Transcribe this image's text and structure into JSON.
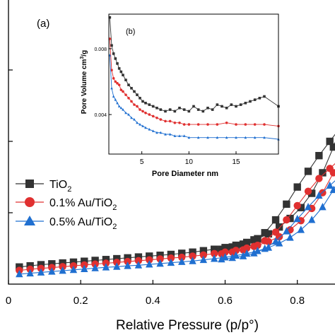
{
  "chart_data": [
    {
      "id": "main",
      "panel_label": "(a)",
      "type": "scatter",
      "xlabel": "Relative Pressure (p/p°)",
      "ylabel": "",
      "xlim": [
        0,
        0.92
      ],
      "ylim": [
        0,
        1.0
      ],
      "xticks": [
        0,
        0.2,
        0.4,
        0.6,
        0.8
      ],
      "xtick_labels": [
        "0",
        "0.2",
        "0.4",
        "0.6",
        "0.8"
      ],
      "yticks": [
        0.25,
        0.5,
        0.75
      ],
      "grid": false,
      "legend": {
        "placement": "middle-left",
        "entries": [
          {
            "main": "TiO",
            "sub": "2"
          },
          {
            "main": "0.1% Au/TiO",
            "sub": "2"
          },
          {
            "main": "0.5% Au/TiO",
            "sub": "2"
          }
        ]
      },
      "series": [
        {
          "name": "TiO2",
          "marker": "square",
          "color": "#333333",
          "adsorption": {
            "x": [
              0.03,
              0.06,
              0.09,
              0.12,
              0.15,
              0.18,
              0.21,
              0.24,
              0.27,
              0.3,
              0.33,
              0.36,
              0.39,
              0.42,
              0.45,
              0.48,
              0.51,
              0.54,
              0.57,
              0.6,
              0.63,
              0.66,
              0.69,
              0.72,
              0.75,
              0.78,
              0.81,
              0.84,
              0.87,
              0.9,
              0.92
            ],
            "y": [
              0.06,
              0.064,
              0.068,
              0.071,
              0.074,
              0.077,
              0.08,
              0.083,
              0.086,
              0.089,
              0.092,
              0.095,
              0.098,
              0.101,
              0.104,
              0.108,
              0.112,
              0.117,
              0.122,
              0.128,
              0.136,
              0.146,
              0.159,
              0.176,
              0.2,
              0.23,
              0.268,
              0.318,
              0.39,
              0.48,
              0.55
            ]
          },
          "desorption": {
            "x": [
              0.92,
              0.89,
              0.86,
              0.83,
              0.8,
              0.77,
              0.74,
              0.71,
              0.68,
              0.65,
              0.62,
              0.59
            ],
            "y": [
              0.55,
              0.5,
              0.45,
              0.395,
              0.34,
              0.28,
              0.225,
              0.18,
              0.155,
              0.14,
              0.13,
              0.122
            ]
          }
        },
        {
          "name": "0.1% Au/TiO2",
          "marker": "circle",
          "color": "#e03030",
          "adsorption": {
            "x": [
              0.03,
              0.06,
              0.09,
              0.12,
              0.15,
              0.18,
              0.21,
              0.24,
              0.27,
              0.3,
              0.33,
              0.36,
              0.39,
              0.42,
              0.45,
              0.48,
              0.51,
              0.54,
              0.57,
              0.6,
              0.63,
              0.66,
              0.69,
              0.72,
              0.75,
              0.78,
              0.81,
              0.84,
              0.87,
              0.9,
              0.92
            ],
            "y": [
              0.048,
              0.052,
              0.055,
              0.058,
              0.061,
              0.064,
              0.067,
              0.07,
              0.073,
              0.076,
              0.079,
              0.082,
              0.085,
              0.088,
              0.091,
              0.094,
              0.098,
              0.102,
              0.107,
              0.112,
              0.118,
              0.126,
              0.136,
              0.149,
              0.166,
              0.19,
              0.222,
              0.265,
              0.32,
              0.39,
              0.44
            ]
          },
          "desorption": {
            "x": [
              0.92,
              0.89,
              0.86,
              0.83,
              0.8,
              0.77,
              0.74,
              0.71,
              0.68,
              0.65,
              0.62,
              0.59
            ],
            "y": [
              0.44,
              0.405,
              0.37,
              0.325,
              0.275,
              0.225,
              0.182,
              0.152,
              0.132,
              0.12,
              0.112,
              0.106
            ]
          }
        },
        {
          "name": "0.5% Au/TiO2",
          "marker": "triangle",
          "color": "#1f6fd0",
          "adsorption": {
            "x": [
              0.03,
              0.06,
              0.09,
              0.12,
              0.15,
              0.18,
              0.21,
              0.24,
              0.27,
              0.3,
              0.33,
              0.36,
              0.39,
              0.42,
              0.45,
              0.48,
              0.51,
              0.54,
              0.57,
              0.6,
              0.63,
              0.66,
              0.69,
              0.72,
              0.75,
              0.78,
              0.81,
              0.84,
              0.87,
              0.9,
              0.92
            ],
            "y": [
              0.035,
              0.038,
              0.041,
              0.044,
              0.047,
              0.05,
              0.053,
              0.056,
              0.059,
              0.061,
              0.064,
              0.066,
              0.069,
              0.072,
              0.075,
              0.078,
              0.081,
              0.085,
              0.089,
              0.094,
              0.1,
              0.107,
              0.116,
              0.128,
              0.143,
              0.163,
              0.19,
              0.225,
              0.27,
              0.33,
              0.38
            ]
          },
          "desorption": {
            "x": [
              0.92,
              0.89,
              0.86,
              0.83,
              0.8,
              0.77,
              0.74,
              0.71,
              0.68,
              0.65,
              0.62,
              0.59
            ],
            "y": [
              0.38,
              0.345,
              0.31,
              0.27,
              0.228,
              0.185,
              0.15,
              0.124,
              0.108,
              0.098,
              0.092,
              0.087
            ]
          }
        }
      ]
    },
    {
      "id": "inset",
      "panel_label": "(b)",
      "type": "line",
      "xlabel": "Pore Diameter nm",
      "ylabel": {
        "main": "Pore Volume cm",
        "sup": "3",
        "tail": "/g"
      },
      "xlim": [
        1.5,
        19.5
      ],
      "ylim": [
        0.0016,
        0.0101
      ],
      "xticks": [
        5,
        10,
        15
      ],
      "xtick_labels": [
        "5",
        "10",
        "15"
      ],
      "yticks": [
        0.004,
        0.008
      ],
      "ytick_labels": [
        "0.004",
        "0.008"
      ],
      "grid": false,
      "series": [
        {
          "name": "TiO2",
          "marker": "square",
          "color": "#333333",
          "x": [
            1.6,
            1.8,
            2.0,
            2.2,
            2.4,
            2.6,
            2.8,
            3.0,
            3.3,
            3.6,
            3.9,
            4.2,
            4.5,
            4.8,
            5.1,
            5.4,
            5.8,
            6.2,
            6.6,
            7.0,
            7.5,
            8.0,
            8.5,
            9.0,
            9.5,
            10.0,
            10.5,
            11.0,
            11.5,
            12.0,
            12.5,
            13.0,
            13.5,
            14.0,
            14.5,
            15.0,
            15.5,
            16.0,
            16.5,
            17.0,
            17.5,
            18.0,
            19.5
          ],
          "y": [
            0.0099,
            0.0082,
            0.0077,
            0.0074,
            0.0071,
            0.0068,
            0.0066,
            0.0064,
            0.0061,
            0.0058,
            0.0056,
            0.0054,
            0.0052,
            0.005,
            0.0048,
            0.0047,
            0.0046,
            0.0045,
            0.0044,
            0.0043,
            0.0042,
            0.0043,
            0.0042,
            0.0044,
            0.0043,
            0.0042,
            0.0045,
            0.0043,
            0.0042,
            0.0044,
            0.0043,
            0.0046,
            0.0045,
            0.0044,
            0.0046,
            0.0045,
            0.0046,
            0.0047,
            0.0048,
            0.0049,
            0.005,
            0.0051,
            0.0045
          ]
        },
        {
          "name": "0.1% Au/TiO2",
          "marker": "circle",
          "color": "#e03030",
          "x": [
            1.6,
            1.8,
            2.0,
            2.2,
            2.4,
            2.6,
            2.8,
            3.0,
            3.3,
            3.6,
            3.9,
            4.2,
            4.5,
            4.8,
            5.1,
            5.4,
            5.8,
            6.2,
            6.6,
            7.0,
            7.5,
            8.0,
            8.5,
            9.0,
            9.5,
            10.0,
            11.0,
            12.0,
            13.0,
            14.0,
            15.0,
            16.0,
            17.0,
            18.0,
            19.5
          ],
          "y": [
            0.0086,
            0.0067,
            0.0062,
            0.006,
            0.0059,
            0.0058,
            0.0055,
            0.0054,
            0.0052,
            0.005,
            0.0048,
            0.0046,
            0.0045,
            0.0043,
            0.0042,
            0.0041,
            0.004,
            0.0039,
            0.0038,
            0.0037,
            0.0036,
            0.0036,
            0.0035,
            0.0035,
            0.0034,
            0.0034,
            0.0034,
            0.0034,
            0.0034,
            0.0035,
            0.0034,
            0.0034,
            0.0034,
            0.0034,
            0.0033
          ]
        },
        {
          "name": "0.5% Au/TiO2",
          "marker": "triangle",
          "color": "#1f6fd0",
          "x": [
            1.6,
            1.8,
            2.0,
            2.2,
            2.4,
            2.6,
            2.8,
            3.0,
            3.3,
            3.6,
            3.9,
            4.2,
            4.5,
            4.8,
            5.1,
            5.4,
            5.8,
            6.2,
            6.6,
            7.0,
            7.5,
            8.0,
            8.5,
            9.0,
            9.5,
            10.0,
            11.0,
            12.0,
            13.0,
            14.0,
            15.0,
            16.0,
            17.0,
            18.0,
            19.5
          ],
          "y": [
            0.0076,
            0.0056,
            0.0051,
            0.0049,
            0.0047,
            0.0045,
            0.0044,
            0.0043,
            0.0041,
            0.004,
            0.0038,
            0.0037,
            0.0035,
            0.0034,
            0.0033,
            0.0032,
            0.0031,
            0.003,
            0.0029,
            0.0029,
            0.0028,
            0.0028,
            0.0027,
            0.0027,
            0.0027,
            0.0026,
            0.0026,
            0.0026,
            0.0026,
            0.0026,
            0.0026,
            0.0026,
            0.0026,
            0.0026,
            0.0025
          ]
        }
      ]
    }
  ]
}
